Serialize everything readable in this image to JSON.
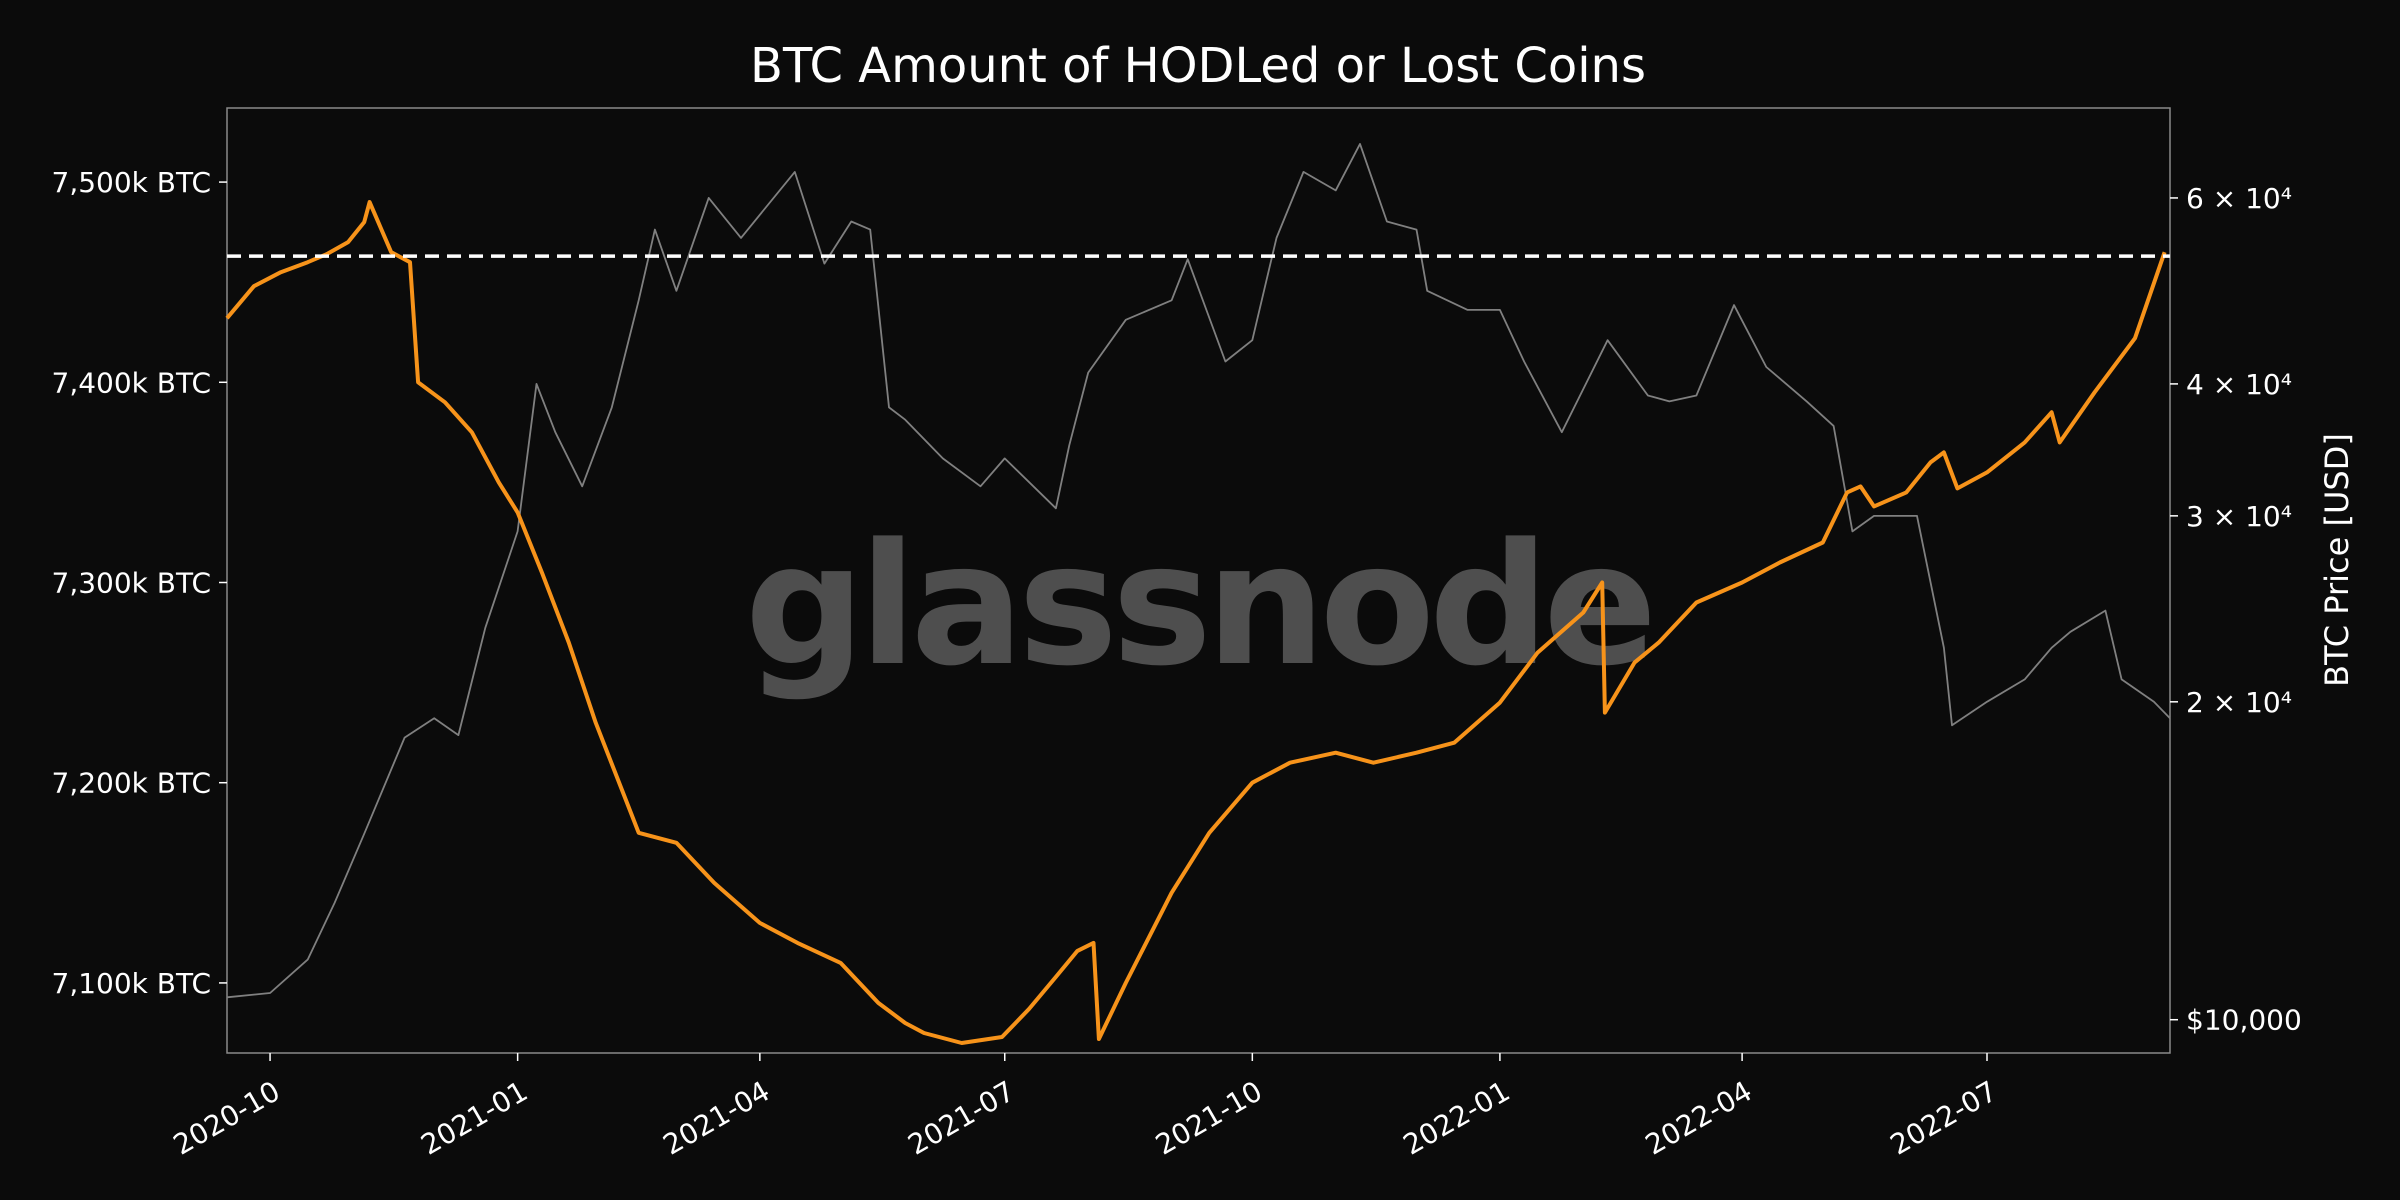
{
  "chart_data": {
    "type": "line",
    "title": "BTC Amount of HODLed or Lost Coins",
    "xlabel": "",
    "ylabel_left": "",
    "ylabel_right": "BTC Price [USD]",
    "watermark": "glassnode",
    "x_range": [
      "2020-09-15",
      "2022-09-07"
    ],
    "x_ticks": [
      "2020-10",
      "2021-01",
      "2021-04",
      "2021-07",
      "2021-10",
      "2022-01",
      "2022-04",
      "2022-07"
    ],
    "y_left_range": [
      7065,
      7537
    ],
    "y_left_ticks": [
      {
        "value": 7100,
        "label": "7,100k BTC"
      },
      {
        "value": 7200,
        "label": "7,200k BTC"
      },
      {
        "value": 7300,
        "label": "7,300k BTC"
      },
      {
        "value": 7400,
        "label": "7,400k BTC"
      },
      {
        "value": 7500,
        "label": "7,500k BTC"
      }
    ],
    "y_right_scale": "log",
    "y_right_range": [
      9300,
      73000
    ],
    "y_right_ticks": [
      {
        "value": 10000,
        "label": "$10,000"
      },
      {
        "value": 20000,
        "label": "2 × 10⁴"
      },
      {
        "value": 30000,
        "label": "3 × 10⁴"
      },
      {
        "value": 40000,
        "label": "4 × 10⁴"
      },
      {
        "value": 60000,
        "label": "6 × 10⁴"
      }
    ],
    "reference_line": {
      "axis": "left",
      "value": 7463,
      "style": "dashed",
      "color": "#ffffff"
    },
    "grid": false,
    "series": [
      {
        "axis": "left",
        "color": "#f7931a",
        "x": [
          "2020-09-15",
          "2020-09-25",
          "2020-10-05",
          "2020-10-15",
          "2020-10-22",
          "2020-10-30",
          "2020-11-05",
          "2020-11-07",
          "2020-11-15",
          "2020-11-22",
          "2020-11-25",
          "2020-12-05",
          "2020-12-15",
          "2020-12-25",
          "2021-01-01",
          "2021-01-10",
          "2021-01-20",
          "2021-01-30",
          "2021-02-15",
          "2021-03-01",
          "2021-03-15",
          "2021-04-01",
          "2021-04-15",
          "2021-05-01",
          "2021-05-15",
          "2021-05-25",
          "2021-06-01",
          "2021-06-15",
          "2021-06-30",
          "2021-07-10",
          "2021-07-20",
          "2021-07-28",
          "2021-08-03",
          "2021-08-05",
          "2021-08-15",
          "2021-09-01",
          "2021-09-15",
          "2021-10-01",
          "2021-10-15",
          "2021-11-01",
          "2021-11-15",
          "2021-12-01",
          "2021-12-15",
          "2022-01-01",
          "2022-01-15",
          "2022-02-01",
          "2022-02-08",
          "2022-02-09",
          "2022-02-20",
          "2022-03-01",
          "2022-03-15",
          "2022-04-01",
          "2022-04-15",
          "2022-05-01",
          "2022-05-10",
          "2022-05-15",
          "2022-05-20",
          "2022-06-01",
          "2022-06-10",
          "2022-06-15",
          "2022-06-20",
          "2022-07-01",
          "2022-07-15",
          "2022-07-25",
          "2022-07-28",
          "2022-08-10",
          "2022-08-25",
          "2022-09-05"
        ],
        "values": [
          7432,
          7448,
          7455,
          7460,
          7464,
          7470,
          7480,
          7490,
          7465,
          7460,
          7400,
          7390,
          7375,
          7350,
          7335,
          7305,
          7270,
          7230,
          7175,
          7170,
          7150,
          7130,
          7120,
          7110,
          7090,
          7080,
          7075,
          7070,
          7073,
          7087,
          7103,
          7116,
          7120,
          7072,
          7100,
          7145,
          7175,
          7200,
          7210,
          7215,
          7210,
          7215,
          7220,
          7240,
          7265,
          7285,
          7300,
          7235,
          7260,
          7270,
          7290,
          7300,
          7310,
          7320,
          7345,
          7348,
          7338,
          7345,
          7360,
          7365,
          7347,
          7355,
          7370,
          7385,
          7370,
          7395,
          7422,
          7465
        ]
      },
      {
        "axis": "right",
        "color": "#808080",
        "x": [
          "2020-09-15",
          "2020-10-01",
          "2020-10-15",
          "2020-10-25",
          "2020-11-05",
          "2020-11-20",
          "2020-12-01",
          "2020-12-10",
          "2020-12-20",
          "2021-01-01",
          "2021-01-08",
          "2021-01-15",
          "2021-01-25",
          "2021-02-05",
          "2021-02-15",
          "2021-02-21",
          "2021-03-01",
          "2021-03-13",
          "2021-03-25",
          "2021-04-14",
          "2021-04-25",
          "2021-05-05",
          "2021-05-12",
          "2021-05-19",
          "2021-05-25",
          "2021-06-08",
          "2021-06-22",
          "2021-07-01",
          "2021-07-20",
          "2021-07-25",
          "2021-08-01",
          "2021-08-15",
          "2021-09-01",
          "2021-09-07",
          "2021-09-21",
          "2021-10-01",
          "2021-10-10",
          "2021-10-20",
          "2021-11-01",
          "2021-11-10",
          "2021-11-20",
          "2021-12-01",
          "2021-12-05",
          "2021-12-20",
          "2022-01-01",
          "2022-01-10",
          "2022-01-24",
          "2022-02-10",
          "2022-02-25",
          "2022-03-05",
          "2022-03-15",
          "2022-03-29",
          "2022-04-10",
          "2022-04-25",
          "2022-05-05",
          "2022-05-12",
          "2022-05-20",
          "2022-06-05",
          "2022-06-15",
          "2022-06-18",
          "2022-07-01",
          "2022-07-15",
          "2022-07-25",
          "2022-08-01",
          "2022-08-14",
          "2022-08-20",
          "2022-09-01",
          "2022-09-07"
        ],
        "values": [
          10500,
          10600,
          11400,
          12900,
          15000,
          18500,
          19300,
          18600,
          23500,
          29000,
          40000,
          36000,
          32000,
          38000,
          48000,
          56000,
          49000,
          60000,
          55000,
          63500,
          52000,
          57000,
          56000,
          38000,
          37000,
          34000,
          32000,
          34000,
          30500,
          35000,
          41000,
          46000,
          48000,
          52500,
          42000,
          44000,
          55000,
          63500,
          61000,
          67500,
          57000,
          56000,
          49000,
          47000,
          47000,
          42000,
          36000,
          44000,
          39000,
          38500,
          39000,
          47500,
          41500,
          38500,
          36500,
          29000,
          30000,
          30000,
          22500,
          19000,
          20000,
          21000,
          22500,
          23300,
          24400,
          21000,
          20000,
          19300
        ]
      }
    ]
  }
}
